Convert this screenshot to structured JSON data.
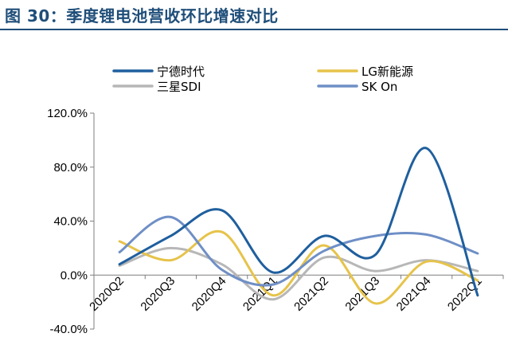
{
  "header": {
    "title": "图 30：季度锂电池营收环比增速对比"
  },
  "chart_data": {
    "type": "line",
    "title": "",
    "xlabel": "",
    "ylabel": "",
    "categories": [
      "2020Q2",
      "2020Q3",
      "2020Q4",
      "2021Q1",
      "2021Q2",
      "2021Q3",
      "2021Q4",
      "2022Q1"
    ],
    "ylim": [
      -40,
      120
    ],
    "yticks": [
      "120.0%",
      "80.0%",
      "40.0%",
      "0.0%",
      "-40.0%"
    ],
    "ytick_values": [
      120,
      80,
      40,
      0,
      -40
    ],
    "legend_position": "top",
    "grid": false,
    "smooth": true,
    "series": [
      {
        "name": "宁德时代",
        "color": "#1f5f9e",
        "values": [
          8,
          29,
          48,
          2,
          29,
          15,
          94,
          -15
        ]
      },
      {
        "name": "LG新能源",
        "color": "#e6c34a",
        "values": [
          25,
          11,
          32,
          -15,
          22,
          -21,
          10,
          -4
        ]
      },
      {
        "name": "三星SDI",
        "color": "#b7b7b7",
        "values": [
          7,
          20,
          8,
          -18,
          13,
          3,
          11,
          3
        ]
      },
      {
        "name": "SK On",
        "color": "#6f8fc6",
        "values": [
          17,
          43,
          4,
          -7,
          18,
          29,
          30,
          16
        ]
      }
    ]
  }
}
